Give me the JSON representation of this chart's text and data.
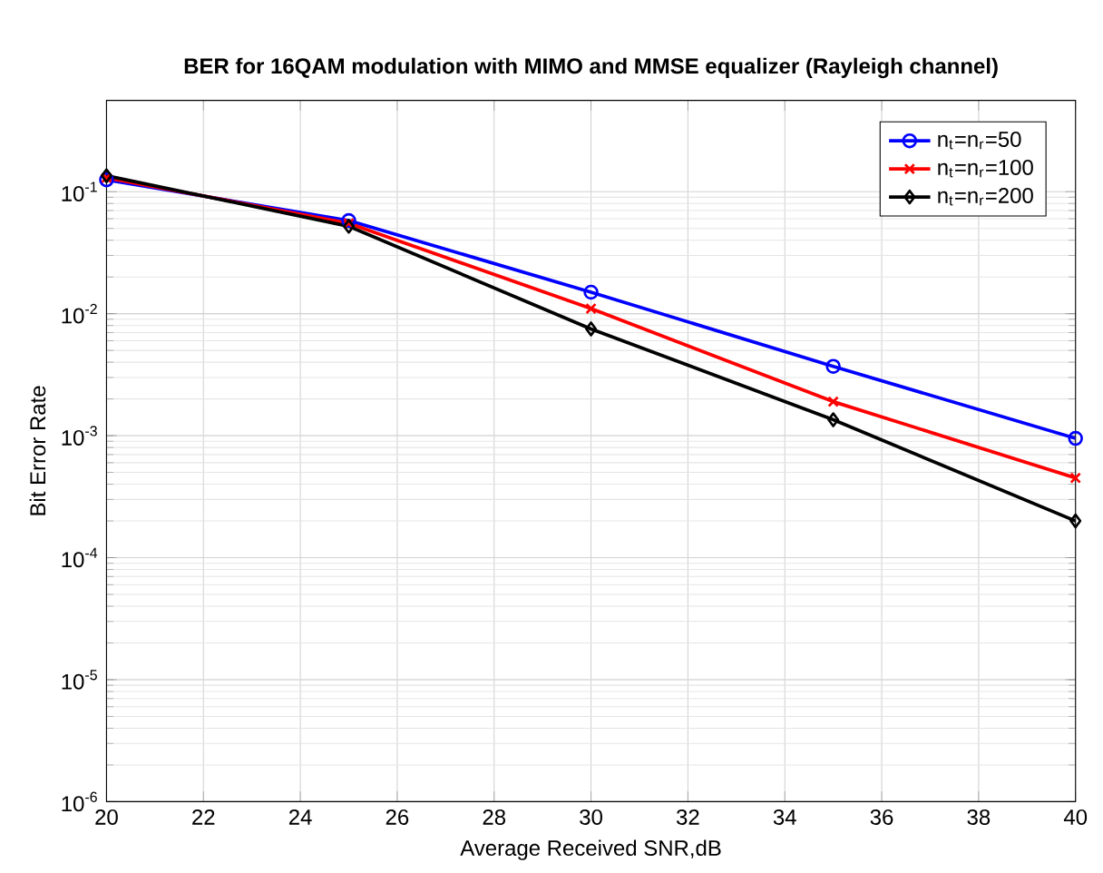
{
  "chart_data": {
    "type": "line",
    "title": "BER for 16QAM modulation with  MIMO and MMSE equalizer (Rayleigh channel)",
    "xlabel": "Average Received SNR,dB",
    "ylabel": "Bit Error Rate",
    "x": [
      20,
      25,
      30,
      35,
      40
    ],
    "series": [
      {
        "name": "n$_{t}$=n$_{r}$=50",
        "color": "#0000ff",
        "marker": "circle",
        "values": [
          0.125,
          0.058,
          0.015,
          0.0037,
          0.00095
        ]
      },
      {
        "name": "n$_{t}$=n$_{r}$=100",
        "color": "#ff0000",
        "marker": "cross",
        "values": [
          0.13,
          0.055,
          0.011,
          0.0019,
          0.00045
        ]
      },
      {
        "name": "n$_{t}$=n$_{r}$=200",
        "color": "#000000",
        "marker": "diamond",
        "values": [
          0.135,
          0.052,
          0.0075,
          0.00135,
          0.0002
        ]
      }
    ],
    "log": "y",
    "xlim": [
      20,
      40
    ],
    "ylim": [
      1e-06,
      0.56
    ],
    "xticks": [
      20,
      22,
      24,
      26,
      28,
      30,
      32,
      34,
      36,
      38,
      40
    ],
    "yticks": [
      {
        "value": 1e-06,
        "label": "10$^{-6}$"
      },
      {
        "value": 1e-05,
        "label": "10$^{-5}$"
      },
      {
        "value": 0.0001,
        "label": "10$^{-4}$"
      },
      {
        "value": 0.001,
        "label": "10$^{-3}$"
      },
      {
        "value": 0.01,
        "label": "10$^{-2}$"
      },
      {
        "value": 0.1,
        "label": "10$^{-1}$"
      }
    ],
    "grid": true,
    "legend": "top right",
    "line_style": "solid"
  }
}
